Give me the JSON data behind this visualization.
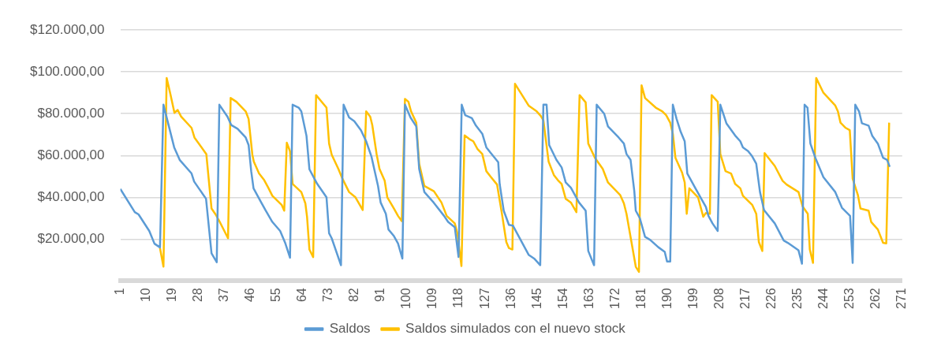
{
  "chart_data": {
    "type": "line",
    "legend": "bottom",
    "grid": "y",
    "marker": "none",
    "line_style": "solid",
    "xlim": [
      1,
      271
    ],
    "xticks": [
      1,
      10,
      19,
      28,
      37,
      46,
      55,
      64,
      73,
      82,
      91,
      100,
      109,
      118,
      127,
      136,
      145,
      154,
      163,
      172,
      181,
      190,
      199,
      208,
      217,
      226,
      235,
      244,
      253,
      262,
      271
    ],
    "ylim": [
      0,
      120000
    ],
    "yticks": [
      {
        "value": 0,
        "label": null
      },
      {
        "value": 20000,
        "label": "$20.000,00"
      },
      {
        "value": 40000,
        "label": "$40.000,00"
      },
      {
        "value": 60000,
        "label": "$60.000,00"
      },
      {
        "value": 80000,
        "label": "$80.000,00"
      },
      {
        "value": 100000,
        "label": "$100.000,00"
      },
      {
        "value": 120000,
        "label": "$120.000,00"
      }
    ],
    "series": [
      {
        "name": "Saldos",
        "color": "#5b9bd5",
        "x": [
          1,
          6,
          7.3,
          11,
          12.8,
          14.7,
          15.9,
          19.6,
          21.5,
          25.6,
          26.5,
          30.6,
          32.5,
          34.3,
          35.2,
          38,
          39.3,
          41.5,
          44.3,
          45.3,
          46.2,
          47,
          49.4,
          51.1,
          53.5,
          56.2,
          58,
          59.6,
          60.5,
          62.6,
          63.5,
          65.3,
          66.3,
          69,
          72.2,
          73.1,
          74,
          77.2,
          78.1,
          80,
          81.8,
          84.1,
          85.9,
          87.7,
          90,
          90.9,
          92.7,
          93.6,
          95.5,
          96.9,
          98.4,
          99.3,
          101.2,
          103.2,
          104.2,
          106,
          109.2,
          112.8,
          114.2,
          116.5,
          117.8,
          118.9,
          120.1,
          122.4,
          123.8,
          126,
          127.4,
          128.8,
          131.5,
          132,
          133.4,
          135.2,
          136.6,
          142,
          143.9,
          146,
          147.1,
          148.2,
          149.1,
          151.6,
          153.4,
          154.8,
          156.6,
          159.4,
          161.7,
          162.6,
          164.6,
          165.5,
          168.1,
          169.4,
          173.1,
          174.9,
          175.8,
          177.2,
          178.5,
          179,
          180.4,
          182.2,
          184,
          186.8,
          189,
          189.8,
          190.9,
          191.8,
          193.1,
          194.5,
          195.9,
          196.8,
          199.6,
          203.2,
          204.1,
          205.5,
          207.3,
          208.2,
          210.3,
          213.3,
          215.1,
          216,
          217.8,
          219.2,
          220.6,
          221.9,
          223.3,
          227,
          230.1,
          231.5,
          235.2,
          236.4,
          237.3,
          238.3,
          239.3,
          241.1,
          243.8,
          247.9,
          250.2,
          253,
          253.9,
          254.8,
          256.1,
          257.1,
          259.4,
          260.7,
          262.6,
          264.4,
          265.8,
          266.7
        ],
        "values": [
          44000,
          32900,
          31800,
          23900,
          17800,
          16000,
          84300,
          63900,
          57900,
          51400,
          47500,
          39300,
          13200,
          8900,
          84300,
          78600,
          74600,
          72800,
          68600,
          65000,
          52500,
          44300,
          38200,
          33900,
          28200,
          23900,
          17900,
          11100,
          84300,
          82900,
          81100,
          69300,
          53400,
          46400,
          40000,
          22800,
          20400,
          7500,
          84300,
          78200,
          76400,
          72100,
          66800,
          59600,
          45400,
          37500,
          32100,
          24600,
          21400,
          17900,
          10700,
          84300,
          78200,
          73900,
          53600,
          42500,
          37500,
          31100,
          28200,
          25700,
          11400,
          84300,
          79300,
          77900,
          74300,
          70400,
          63900,
          61400,
          56800,
          46400,
          33600,
          26800,
          26400,
          12500,
          10700,
          7500,
          84300,
          84300,
          65000,
          57900,
          54300,
          47100,
          44600,
          37500,
          33600,
          14300,
          7500,
          84300,
          80000,
          73900,
          68600,
          65700,
          60700,
          57900,
          42900,
          33600,
          30000,
          21100,
          19600,
          16100,
          13900,
          9300,
          9300,
          84300,
          77500,
          71400,
          66800,
          51400,
          44300,
          35400,
          31100,
          27500,
          23900,
          84300,
          75400,
          69600,
          66800,
          63900,
          62100,
          59600,
          56100,
          42500,
          33900,
          27500,
          19300,
          18200,
          14600,
          8200,
          84300,
          82900,
          65700,
          58600,
          49600,
          42500,
          35000,
          31100,
          8600,
          84300,
          81100,
          75400,
          74300,
          69300,
          65700,
          58900,
          57900,
          54600
        ]
      },
      {
        "name": "Saldos simulados con el nuevo stock",
        "color": "#ffc000",
        "x": [
          14.7,
          15.9,
          17,
          18.3,
          19.7,
          20.8,
          22,
          25.6,
          26.6,
          30.7,
          32.5,
          33.9,
          35.2,
          38.2,
          39.1,
          41.1,
          44.3,
          45.3,
          46.6,
          47.1,
          48.9,
          50.7,
          52.1,
          53.5,
          56.7,
          57.6,
          58.5,
          59.6,
          60.5,
          63.5,
          64.9,
          65.5,
          66.3,
          67.6,
          68.6,
          72.2,
          73.1,
          74,
          76.3,
          77.7,
          80,
          82.2,
          84.7,
          85.9,
          87.3,
          88,
          89.5,
          90.5,
          92.3,
          93.2,
          95.5,
          96.9,
          98.2,
          99.3,
          100.5,
          101.4,
          103.2,
          104.2,
          106,
          109.3,
          111.9,
          113.7,
          116.5,
          117.4,
          118.8,
          119.9,
          121.5,
          122.9,
          124.3,
          126,
          127.4,
          128.8,
          131.1,
          132.9,
          134.3,
          135.2,
          136.4,
          137.3,
          142,
          144.8,
          146.2,
          147.1,
          148.9,
          150.7,
          152.1,
          153.4,
          154.8,
          156.6,
          158.5,
          159.6,
          161.7,
          162.6,
          164.9,
          167.6,
          169.4,
          173.6,
          174.9,
          175.8,
          179,
          180.1,
          181,
          182.2,
          185.9,
          188.2,
          189.5,
          190.9,
          191.8,
          192.7,
          195,
          195.9,
          196.6,
          197.5,
          200.5,
          202.3,
          203.2,
          204.6,
          205.2,
          207.3,
          208.2,
          210,
          211.9,
          213.3,
          215.1,
          216,
          219.2,
          220.6,
          221.5,
          222.7,
          223.5,
          227,
          229.7,
          231.1,
          235.2,
          236.6,
          238.4,
          239.1,
          240.2,
          241.3,
          243.8,
          247.9,
          248.8,
          249.7,
          251.5,
          252.9,
          253.9,
          255.7,
          256.6,
          259.4,
          260.3,
          262.6,
          264.4,
          265.5,
          266.5
        ],
        "values": [
          15700,
          6800,
          97100,
          89300,
          80400,
          81800,
          78600,
          73200,
          68600,
          60700,
          34600,
          31800,
          28600,
          20400,
          87500,
          85700,
          81100,
          77500,
          60400,
          57100,
          51400,
          48200,
          44600,
          40700,
          36400,
          33600,
          66100,
          62100,
          46400,
          42500,
          37100,
          30400,
          15000,
          11400,
          88900,
          82900,
          65700,
          60400,
          53600,
          48900,
          42500,
          40000,
          33900,
          81100,
          78600,
          74600,
          60700,
          53600,
          47900,
          40000,
          34600,
          31100,
          28600,
          87100,
          85700,
          81100,
          75700,
          56100,
          45400,
          42900,
          37500,
          31100,
          27500,
          22800,
          7100,
          69600,
          67900,
          66800,
          63200,
          60700,
          52500,
          50000,
          46100,
          31100,
          18600,
          15700,
          15000,
          94300,
          83900,
          81100,
          78900,
          76800,
          57100,
          50700,
          48200,
          46400,
          39300,
          37500,
          32900,
          88900,
          85400,
          65700,
          58900,
          53600,
          47100,
          41100,
          37100,
          32100,
          6800,
          4300,
          93600,
          87500,
          82900,
          81100,
          79300,
          75700,
          70400,
          58900,
          51800,
          47100,
          32100,
          44300,
          40000,
          30700,
          32500,
          32100,
          88900,
          85700,
          60700,
          52500,
          51400,
          46400,
          44300,
          40700,
          36400,
          32100,
          18600,
          14300,
          61100,
          55000,
          47900,
          46100,
          42500,
          35700,
          32100,
          15000,
          8600,
          97100,
          90000,
          83900,
          81100,
          75700,
          73200,
          72100,
          48900,
          41100,
          34600,
          33600,
          28200,
          24600,
          18200,
          17900,
          75700
        ]
      }
    ]
  }
}
